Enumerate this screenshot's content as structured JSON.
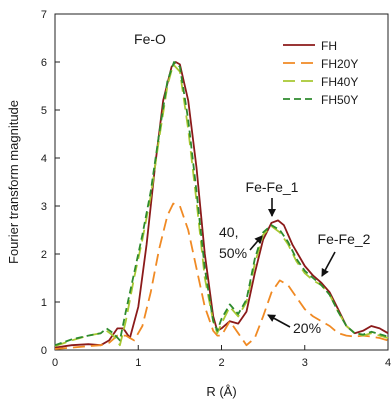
{
  "chart_data": {
    "type": "line",
    "xlabel": "R (Å)",
    "ylabel": "Fourier transform magnitude",
    "xlim": [
      0,
      4
    ],
    "ylim": [
      0,
      7
    ],
    "x_ticks": [
      0,
      1,
      2,
      3,
      4
    ],
    "y_ticks": [
      0,
      1,
      2,
      3,
      4,
      5,
      6,
      7
    ],
    "grid": false,
    "legend_position": "top-right",
    "series": [
      {
        "name": "FH",
        "color": "#8b1a1a",
        "dash": "solid",
        "points": [
          [
            0,
            0.05
          ],
          [
            0.2,
            0.1
          ],
          [
            0.4,
            0.12
          ],
          [
            0.55,
            0.1
          ],
          [
            0.65,
            0.2
          ],
          [
            0.75,
            0.45
          ],
          [
            0.82,
            0.45
          ],
          [
            0.9,
            0.25
          ],
          [
            1.0,
            0.9
          ],
          [
            1.1,
            2.2
          ],
          [
            1.2,
            3.8
          ],
          [
            1.3,
            5.2
          ],
          [
            1.4,
            5.9
          ],
          [
            1.45,
            6.0
          ],
          [
            1.5,
            5.95
          ],
          [
            1.6,
            5.2
          ],
          [
            1.7,
            3.8
          ],
          [
            1.8,
            2.0
          ],
          [
            1.9,
            0.7
          ],
          [
            1.95,
            0.4
          ],
          [
            2.0,
            0.45
          ],
          [
            2.1,
            0.6
          ],
          [
            2.2,
            0.55
          ],
          [
            2.3,
            0.8
          ],
          [
            2.4,
            1.6
          ],
          [
            2.5,
            2.3
          ],
          [
            2.6,
            2.65
          ],
          [
            2.68,
            2.7
          ],
          [
            2.75,
            2.6
          ],
          [
            2.85,
            2.2
          ],
          [
            3.0,
            1.75
          ],
          [
            3.1,
            1.55
          ],
          [
            3.2,
            1.4
          ],
          [
            3.3,
            1.2
          ],
          [
            3.4,
            0.85
          ],
          [
            3.5,
            0.5
          ],
          [
            3.6,
            0.35
          ],
          [
            3.7,
            0.4
          ],
          [
            3.8,
            0.5
          ],
          [
            3.9,
            0.45
          ],
          [
            4.0,
            0.35
          ]
        ]
      },
      {
        "name": "FH20Y",
        "color": "#f08a24",
        "dash": "long",
        "points": [
          [
            0,
            0.02
          ],
          [
            0.2,
            0.05
          ],
          [
            0.4,
            0.08
          ],
          [
            0.55,
            0.1
          ],
          [
            0.65,
            0.15
          ],
          [
            0.75,
            0.3
          ],
          [
            0.85,
            0.3
          ],
          [
            0.95,
            0.2
          ],
          [
            1.05,
            0.5
          ],
          [
            1.15,
            1.2
          ],
          [
            1.25,
            2.1
          ],
          [
            1.35,
            2.8
          ],
          [
            1.42,
            3.05
          ],
          [
            1.5,
            3.0
          ],
          [
            1.6,
            2.5
          ],
          [
            1.7,
            1.7
          ],
          [
            1.8,
            0.9
          ],
          [
            1.9,
            0.4
          ],
          [
            1.95,
            0.3
          ],
          [
            2.0,
            0.3
          ],
          [
            2.1,
            0.6
          ],
          [
            2.2,
            0.35
          ],
          [
            2.3,
            0.1
          ],
          [
            2.4,
            0.25
          ],
          [
            2.5,
            0.7
          ],
          [
            2.6,
            1.2
          ],
          [
            2.7,
            1.45
          ],
          [
            2.8,
            1.35
          ],
          [
            2.9,
            1.1
          ],
          [
            3.0,
            0.85
          ],
          [
            3.1,
            0.7
          ],
          [
            3.2,
            0.6
          ],
          [
            3.3,
            0.5
          ],
          [
            3.4,
            0.35
          ],
          [
            3.5,
            0.3
          ],
          [
            3.6,
            0.28
          ],
          [
            3.7,
            0.3
          ],
          [
            3.8,
            0.28
          ],
          [
            3.9,
            0.25
          ],
          [
            4.0,
            0.2
          ]
        ]
      },
      {
        "name": "FH40Y",
        "color": "#a8c832",
        "dash": "long",
        "points": [
          [
            0,
            0.08
          ],
          [
            0.2,
            0.2
          ],
          [
            0.4,
            0.3
          ],
          [
            0.55,
            0.35
          ],
          [
            0.62,
            0.4
          ],
          [
            0.7,
            0.3
          ],
          [
            0.78,
            0.1
          ],
          [
            0.85,
            0.6
          ],
          [
            0.95,
            1.5
          ],
          [
            1.05,
            2.3
          ],
          [
            1.15,
            3.2
          ],
          [
            1.25,
            4.4
          ],
          [
            1.35,
            5.5
          ],
          [
            1.42,
            5.95
          ],
          [
            1.5,
            5.8
          ],
          [
            1.6,
            4.6
          ],
          [
            1.7,
            3.1
          ],
          [
            1.8,
            1.5
          ],
          [
            1.9,
            0.6
          ],
          [
            1.95,
            0.35
          ],
          [
            2.0,
            0.55
          ],
          [
            2.1,
            0.9
          ],
          [
            2.2,
            0.7
          ],
          [
            2.3,
            1.0
          ],
          [
            2.4,
            1.8
          ],
          [
            2.5,
            2.4
          ],
          [
            2.6,
            2.58
          ],
          [
            2.7,
            2.45
          ],
          [
            2.8,
            2.2
          ],
          [
            2.9,
            1.85
          ],
          [
            3.0,
            1.6
          ],
          [
            3.1,
            1.45
          ],
          [
            3.2,
            1.35
          ],
          [
            3.3,
            1.15
          ],
          [
            3.4,
            0.8
          ],
          [
            3.5,
            0.5
          ],
          [
            3.6,
            0.35
          ],
          [
            3.7,
            0.3
          ],
          [
            3.8,
            0.35
          ],
          [
            3.9,
            0.3
          ],
          [
            4.0,
            0.25
          ]
        ]
      },
      {
        "name": "FH50Y",
        "color": "#2e8b2e",
        "dash": "medium",
        "points": [
          [
            0,
            0.1
          ],
          [
            0.2,
            0.22
          ],
          [
            0.4,
            0.3
          ],
          [
            0.55,
            0.35
          ],
          [
            0.62,
            0.45
          ],
          [
            0.7,
            0.35
          ],
          [
            0.78,
            0.2
          ],
          [
            0.85,
            0.8
          ],
          [
            0.95,
            1.6
          ],
          [
            1.05,
            2.4
          ],
          [
            1.15,
            3.3
          ],
          [
            1.25,
            4.5
          ],
          [
            1.35,
            5.6
          ],
          [
            1.43,
            6.0
          ],
          [
            1.5,
            5.9
          ],
          [
            1.6,
            4.8
          ],
          [
            1.7,
            3.3
          ],
          [
            1.8,
            1.7
          ],
          [
            1.9,
            0.6
          ],
          [
            1.95,
            0.4
          ],
          [
            2.0,
            0.65
          ],
          [
            2.1,
            0.95
          ],
          [
            2.2,
            0.75
          ],
          [
            2.3,
            1.05
          ],
          [
            2.4,
            1.9
          ],
          [
            2.5,
            2.45
          ],
          [
            2.6,
            2.6
          ],
          [
            2.7,
            2.5
          ],
          [
            2.8,
            2.25
          ],
          [
            2.9,
            1.9
          ],
          [
            3.0,
            1.65
          ],
          [
            3.1,
            1.5
          ],
          [
            3.2,
            1.35
          ],
          [
            3.3,
            1.15
          ],
          [
            3.4,
            0.8
          ],
          [
            3.5,
            0.5
          ],
          [
            3.6,
            0.35
          ],
          [
            3.7,
            0.32
          ],
          [
            3.8,
            0.38
          ],
          [
            3.9,
            0.33
          ],
          [
            4.0,
            0.28
          ]
        ]
      }
    ],
    "annotations": {
      "fe_o": "Fe-O",
      "fe_fe_1": "Fe-Fe_1",
      "fe_fe_2": "Fe-Fe_2",
      "pct_40_line1": "40,",
      "pct_40_line2": "50%",
      "pct_20": "20%"
    }
  }
}
